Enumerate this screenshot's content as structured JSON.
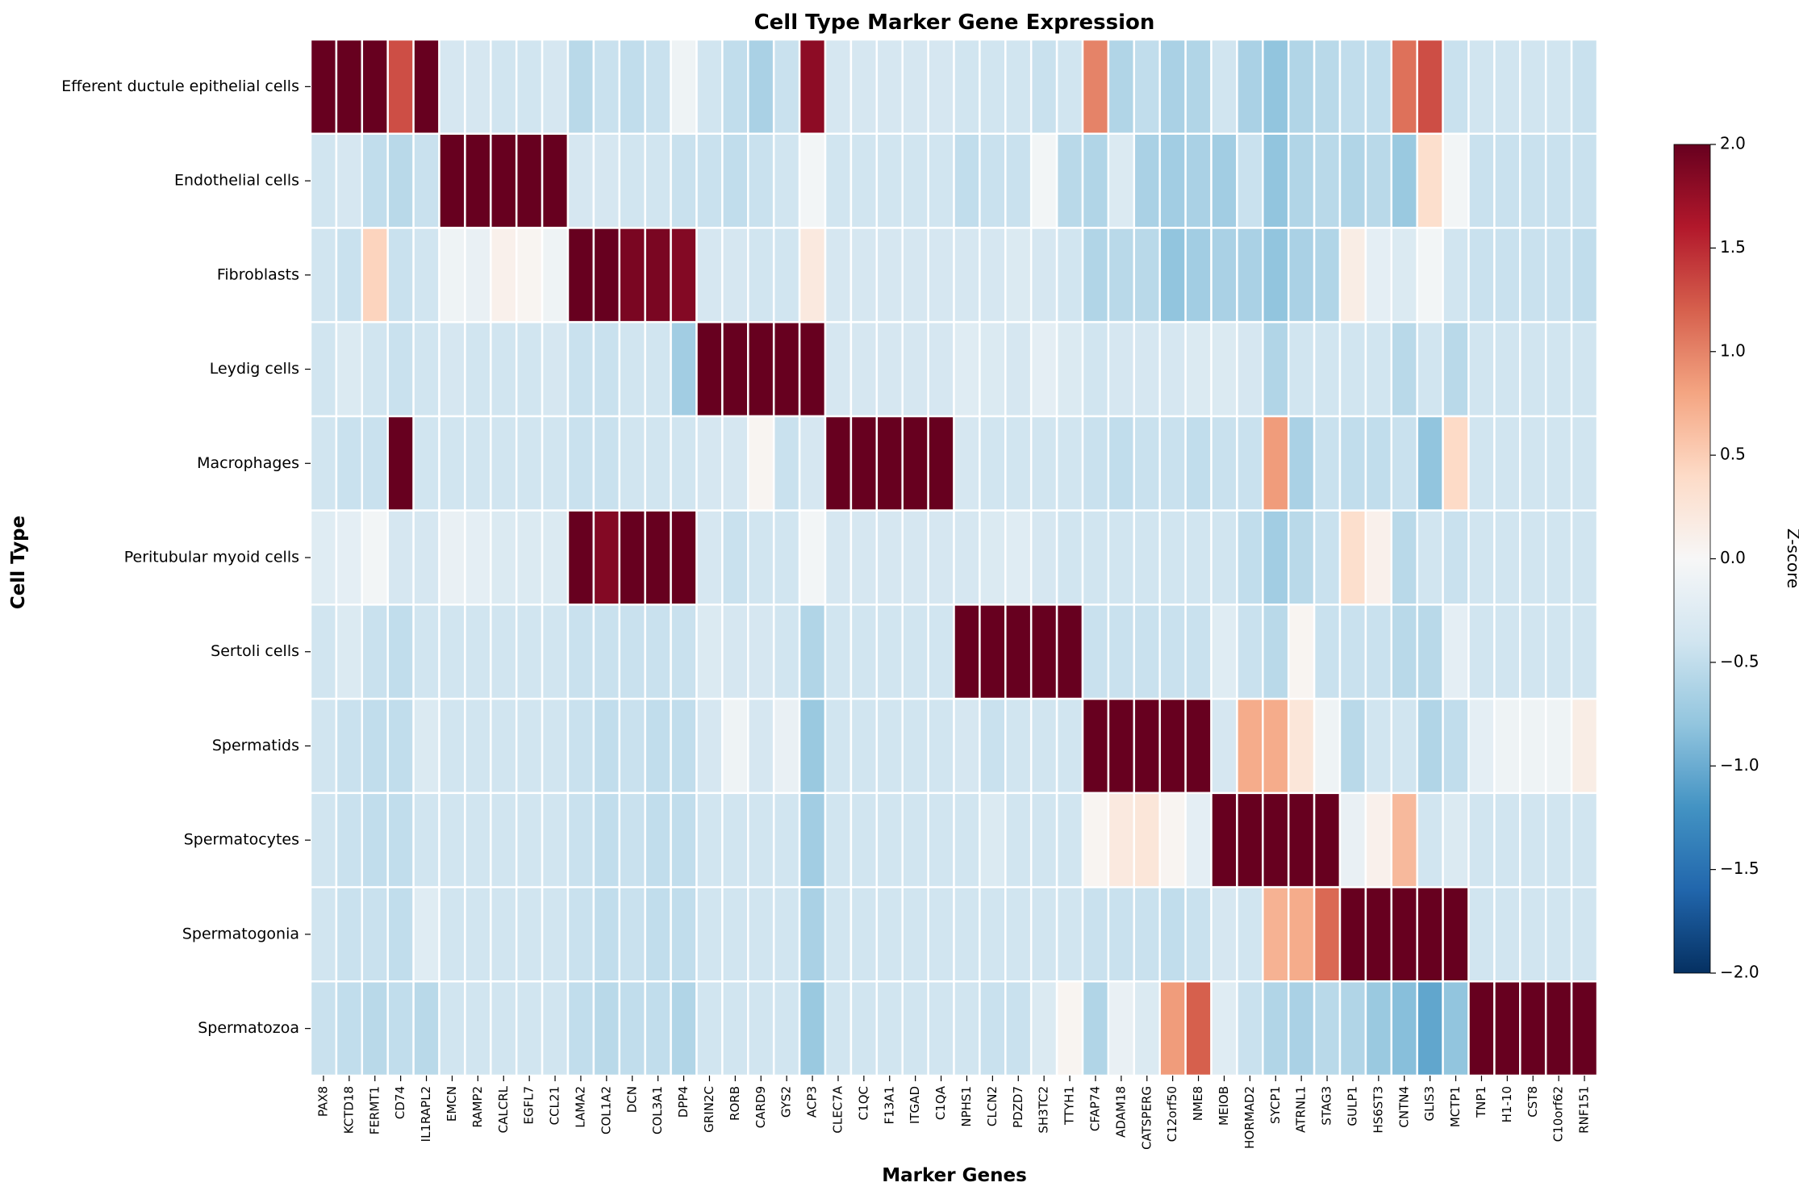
{
  "chart_data": {
    "type": "heatmap",
    "title": "Cell Type Marker Gene Expression",
    "xlabel": "Marker Genes",
    "ylabel": "Cell Type",
    "colorbar_label": "Z-score",
    "vmin": -2,
    "vmax": 2,
    "colorbar_ticks": [
      "2.0",
      "1.5",
      "1.0",
      "0.5",
      "0.0",
      "−0.5",
      "−1.0",
      "−1.5",
      "−2.0"
    ],
    "colorbar_tick_values": [
      2.0,
      1.5,
      1.0,
      0.5,
      0.0,
      -0.5,
      -1.0,
      -1.5,
      -2.0
    ],
    "colormap": "RdBu_r",
    "rows": [
      "Efferent ductule epithelial cells",
      "Endothelial cells",
      "Fibroblasts",
      "Leydig cells",
      "Macrophages",
      "Peritubular myoid cells",
      "Sertoli cells",
      "Spermatids",
      "Spermatocytes",
      "Spermatogonia",
      "Spermatozoa"
    ],
    "columns": [
      "PAX8",
      "KCTD18",
      "FERMT1",
      "CD74",
      "IL1RAPL2",
      "EMCN",
      "RAMP2",
      "CALCRL",
      "EGFL7",
      "CCL21",
      "LAMA2",
      "COL1A2",
      "DCN",
      "COL3A1",
      "DPP4",
      "GRIN2C",
      "RORB",
      "CARD9",
      "GYS2",
      "ACP3",
      "CLEC7A",
      "C1QC",
      "F13A1",
      "ITGAD",
      "C1QA",
      "NPHS1",
      "CLCN2",
      "PDZD7",
      "SH3TC2",
      "TTYH1",
      "CFAP74",
      "ADAM18",
      "CATSPERG",
      "C12orf50",
      "NME8",
      "MEIOB",
      "HORMAD2",
      "SYCP1",
      "ATRNL1",
      "STAG3",
      "GULP1",
      "HS6ST3",
      "CNTN4",
      "GLIS3",
      "MCTP1",
      "TNP1",
      "H1-10",
      "CST8",
      "C10orf62",
      "RNF151"
    ],
    "values": [
      [
        2.0,
        2.0,
        2.0,
        1.3,
        2.0,
        -0.35,
        -0.35,
        -0.4,
        -0.4,
        -0.35,
        -0.55,
        -0.45,
        -0.5,
        -0.45,
        -0.1,
        -0.4,
        -0.5,
        -0.65,
        -0.45,
        1.8,
        -0.35,
        -0.35,
        -0.35,
        -0.35,
        -0.35,
        -0.4,
        -0.4,
        -0.4,
        -0.45,
        -0.4,
        1.0,
        -0.6,
        -0.5,
        -0.65,
        -0.6,
        -0.4,
        -0.65,
        -0.8,
        -0.6,
        -0.55,
        -0.5,
        -0.5,
        1.1,
        1.3,
        -0.45,
        -0.4,
        -0.4,
        -0.4,
        -0.4,
        -0.45
      ],
      [
        -0.4,
        -0.35,
        -0.5,
        -0.55,
        -0.45,
        2.0,
        2.0,
        2.0,
        2.0,
        2.0,
        -0.35,
        -0.35,
        -0.4,
        -0.4,
        -0.45,
        -0.45,
        -0.5,
        -0.45,
        -0.4,
        -0.05,
        -0.4,
        -0.4,
        -0.4,
        -0.4,
        -0.4,
        -0.5,
        -0.45,
        -0.45,
        -0.05,
        -0.55,
        -0.6,
        -0.3,
        -0.65,
        -0.7,
        -0.65,
        -0.7,
        -0.45,
        -0.8,
        -0.6,
        -0.55,
        -0.6,
        -0.55,
        -0.75,
        0.35,
        -0.05,
        -0.45,
        -0.45,
        -0.45,
        -0.45,
        -0.45
      ],
      [
        -0.4,
        -0.45,
        0.45,
        -0.45,
        -0.4,
        -0.1,
        -0.15,
        0.1,
        0.05,
        -0.1,
        2.0,
        2.0,
        1.9,
        1.9,
        1.85,
        -0.35,
        -0.35,
        -0.4,
        -0.4,
        0.2,
        -0.35,
        -0.35,
        -0.35,
        -0.35,
        -0.35,
        -0.35,
        -0.35,
        -0.3,
        -0.35,
        -0.4,
        -0.6,
        -0.55,
        -0.55,
        -0.8,
        -0.7,
        -0.65,
        -0.65,
        -0.8,
        -0.65,
        -0.6,
        0.15,
        -0.2,
        -0.3,
        -0.05,
        -0.4,
        -0.45,
        -0.45,
        -0.45,
        -0.45,
        -0.5
      ],
      [
        -0.4,
        -0.3,
        -0.4,
        -0.45,
        -0.4,
        -0.35,
        -0.4,
        -0.4,
        -0.4,
        -0.35,
        -0.45,
        -0.45,
        -0.4,
        -0.4,
        -0.7,
        2.0,
        2.0,
        2.0,
        2.0,
        2.0,
        -0.35,
        -0.35,
        -0.35,
        -0.35,
        -0.35,
        -0.25,
        -0.3,
        -0.35,
        -0.2,
        -0.3,
        -0.4,
        -0.35,
        -0.35,
        -0.35,
        -0.3,
        -0.3,
        -0.35,
        -0.6,
        -0.4,
        -0.4,
        -0.4,
        -0.4,
        -0.55,
        -0.4,
        -0.55,
        -0.4,
        -0.4,
        -0.4,
        -0.4,
        -0.4
      ],
      [
        -0.4,
        -0.45,
        -0.45,
        2.0,
        -0.4,
        -0.4,
        -0.4,
        -0.4,
        -0.4,
        -0.4,
        -0.45,
        -0.45,
        -0.4,
        -0.4,
        -0.4,
        -0.35,
        -0.35,
        0.05,
        -0.45,
        -0.35,
        2.0,
        2.0,
        2.0,
        2.0,
        2.0,
        -0.35,
        -0.4,
        -0.4,
        -0.4,
        -0.4,
        -0.45,
        -0.5,
        -0.45,
        -0.45,
        -0.5,
        -0.45,
        -0.45,
        0.85,
        -0.65,
        -0.45,
        -0.5,
        -0.5,
        -0.45,
        -0.8,
        0.4,
        -0.4,
        -0.4,
        -0.4,
        -0.4,
        -0.4
      ],
      [
        -0.25,
        -0.2,
        -0.05,
        -0.35,
        -0.35,
        -0.15,
        -0.2,
        -0.3,
        -0.3,
        -0.3,
        2.0,
        1.85,
        2.0,
        2.0,
        2.0,
        -0.35,
        -0.45,
        -0.4,
        -0.4,
        -0.05,
        -0.35,
        -0.35,
        -0.35,
        -0.35,
        -0.35,
        -0.35,
        -0.3,
        -0.25,
        -0.35,
        -0.4,
        -0.4,
        -0.4,
        -0.4,
        -0.4,
        -0.4,
        -0.4,
        -0.5,
        -0.7,
        -0.55,
        -0.45,
        0.35,
        0.1,
        -0.55,
        -0.4,
        -0.45,
        -0.4,
        -0.4,
        -0.4,
        -0.4,
        -0.4
      ],
      [
        -0.4,
        -0.3,
        -0.45,
        -0.5,
        -0.4,
        -0.4,
        -0.4,
        -0.4,
        -0.4,
        -0.4,
        -0.45,
        -0.45,
        -0.45,
        -0.45,
        -0.45,
        -0.3,
        -0.35,
        -0.35,
        -0.4,
        -0.6,
        -0.4,
        -0.4,
        -0.4,
        -0.4,
        -0.4,
        2.0,
        2.0,
        2.0,
        2.0,
        2.0,
        -0.45,
        -0.45,
        -0.45,
        -0.45,
        -0.45,
        -0.25,
        -0.45,
        -0.55,
        0.05,
        -0.45,
        -0.45,
        -0.45,
        -0.55,
        -0.55,
        -0.2,
        -0.4,
        -0.4,
        -0.4,
        -0.4,
        -0.4
      ],
      [
        -0.4,
        -0.45,
        -0.5,
        -0.5,
        -0.3,
        -0.4,
        -0.4,
        -0.4,
        -0.4,
        -0.4,
        -0.45,
        -0.5,
        -0.45,
        -0.5,
        -0.5,
        -0.35,
        -0.1,
        -0.35,
        -0.15,
        -0.75,
        -0.4,
        -0.4,
        -0.4,
        -0.4,
        -0.4,
        -0.35,
        -0.45,
        -0.4,
        -0.4,
        -0.4,
        2.0,
        2.0,
        2.0,
        2.0,
        2.0,
        -0.35,
        0.75,
        0.75,
        0.25,
        -0.1,
        -0.55,
        -0.4,
        -0.4,
        -0.6,
        -0.5,
        -0.2,
        -0.1,
        -0.1,
        -0.1,
        0.15
      ],
      [
        -0.4,
        -0.45,
        -0.5,
        -0.5,
        -0.4,
        -0.4,
        -0.4,
        -0.4,
        -0.4,
        -0.4,
        -0.45,
        -0.5,
        -0.45,
        -0.5,
        -0.5,
        -0.4,
        -0.4,
        -0.4,
        -0.4,
        -0.7,
        -0.4,
        -0.4,
        -0.4,
        -0.4,
        -0.4,
        -0.4,
        -0.3,
        -0.4,
        -0.4,
        -0.4,
        0.05,
        0.2,
        0.25,
        0.05,
        -0.2,
        2.0,
        2.0,
        2.0,
        2.0,
        2.0,
        -0.15,
        0.1,
        0.65,
        -0.4,
        -0.3,
        -0.4,
        -0.4,
        -0.4,
        -0.4,
        -0.4
      ],
      [
        -0.4,
        -0.45,
        -0.45,
        -0.5,
        -0.25,
        -0.4,
        -0.4,
        -0.4,
        -0.4,
        -0.4,
        -0.45,
        -0.5,
        -0.45,
        -0.5,
        -0.5,
        -0.4,
        -0.4,
        -0.4,
        -0.4,
        -0.65,
        -0.4,
        -0.4,
        -0.4,
        -0.4,
        -0.4,
        -0.4,
        -0.4,
        -0.4,
        -0.4,
        -0.4,
        -0.45,
        -0.45,
        -0.45,
        -0.5,
        -0.45,
        -0.35,
        -0.4,
        0.7,
        0.75,
        1.15,
        2.0,
        2.0,
        2.0,
        2.0,
        2.0,
        -0.4,
        -0.4,
        -0.4,
        -0.4,
        -0.4
      ],
      [
        -0.45,
        -0.5,
        -0.55,
        -0.5,
        -0.55,
        -0.4,
        -0.4,
        -0.4,
        -0.4,
        -0.4,
        -0.5,
        -0.55,
        -0.5,
        -0.5,
        -0.6,
        -0.4,
        -0.4,
        -0.4,
        -0.4,
        -0.75,
        -0.4,
        -0.4,
        -0.4,
        -0.4,
        -0.4,
        -0.4,
        -0.45,
        -0.45,
        -0.3,
        0.05,
        -0.6,
        -0.15,
        -0.3,
        0.85,
        1.2,
        -0.25,
        -0.45,
        -0.6,
        -0.65,
        -0.55,
        -0.6,
        -0.75,
        -0.85,
        -1.05,
        -0.8,
        2.0,
        2.0,
        2.0,
        2.0,
        2.0
      ]
    ],
    "grid": false
  }
}
